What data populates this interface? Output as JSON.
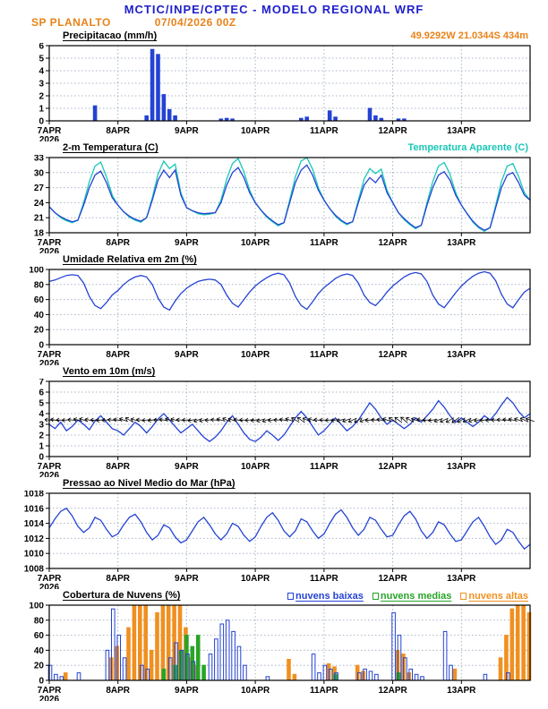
{
  "header": {
    "line1": "MCTIC/INPE/CPTEC - MODELO REGIONAL WRF",
    "station": "SP PLANALTO",
    "run_datetime": "07/04/2026 00Z"
  },
  "colors": {
    "header_blue": "#2020cc",
    "orange": "#e8821a",
    "line_blue": "#2443d4",
    "cyan": "#18c8b8",
    "green": "#28a428",
    "cloud_orange": "#f09020",
    "grid": "#a8b4c8"
  },
  "chart_data": {
    "type": "line",
    "subtype": "meteogram-multipanel",
    "x_axis": {
      "day_labels": [
        "7APR",
        "8APR",
        "9APR",
        "10APR",
        "11APR",
        "12APR",
        "13APR"
      ],
      "year": "2026",
      "hours": 168,
      "step": 2
    },
    "panels": [
      {
        "title": "Precipitacao (mm/h)",
        "right_label": "49.9292W 21.0344S 434m",
        "right_label_color": "#e8821a",
        "ylim": [
          0,
          6
        ],
        "yticks": [
          0,
          1,
          2,
          3,
          4,
          5,
          6
        ],
        "series": [
          {
            "type": "bar-sparse",
            "data": "precip",
            "color": "#2443d4",
            "fill": "solid",
            "dx": 0
          }
        ]
      },
      {
        "title": "2-m Temperatura (C)",
        "right_label": "Temperatura Aparente (C)",
        "right_label_color": "#18c8b8",
        "ylim": [
          18,
          33
        ],
        "yticks": [
          18,
          21,
          24,
          27,
          30,
          33
        ],
        "series": [
          {
            "type": "line",
            "data": "apparent_temp",
            "color": "#18c8b8"
          },
          {
            "type": "line",
            "data": "temp",
            "color": "#2443d4"
          }
        ]
      },
      {
        "title": "Umidade Relativa em 2m (%)",
        "ylim": [
          0,
          100
        ],
        "yticks": [
          0,
          20,
          40,
          60,
          80,
          100
        ],
        "series": [
          {
            "type": "line",
            "data": "rh",
            "color": "#2443d4"
          }
        ]
      },
      {
        "title": "Vento em 10m (m/s)",
        "ylim": [
          0,
          7
        ],
        "yticks": [
          0,
          1,
          2,
          3,
          4,
          5,
          6,
          7
        ],
        "series": [
          {
            "type": "line",
            "data": "wind_speed",
            "color": "#2443d4"
          },
          {
            "type": "barbs",
            "data": "wind_dir",
            "y": 3.4,
            "color": "#000000"
          }
        ]
      },
      {
        "title": "Pressao ao Nivel Medio do Mar (hPa)",
        "ylim": [
          1008,
          1018
        ],
        "yticks": [
          1008,
          1010,
          1012,
          1014,
          1016,
          1018
        ],
        "series": [
          {
            "type": "line",
            "data": "pressure",
            "color": "#2443d4"
          }
        ]
      },
      {
        "title": "Cobertura de Nuvens (%)",
        "ylim": [
          0,
          100
        ],
        "yticks": [
          0,
          20,
          40,
          60,
          80,
          100
        ],
        "legend": [
          {
            "label": "nuvens baixas",
            "color": "#2443d4"
          },
          {
            "label": "nuvens medias",
            "color": "#28a428"
          },
          {
            "label": "nuvens altas",
            "color": "#f09020"
          }
        ],
        "series": [
          {
            "type": "bar-sparse",
            "data": "clouds_high",
            "color": "#f09020",
            "fill": "solid",
            "dx": -1
          },
          {
            "type": "bar-sparse",
            "data": "clouds_mid",
            "color": "#28a428",
            "fill": "solid",
            "dx": 0
          },
          {
            "type": "bar-sparse",
            "data": "clouds_low",
            "color": "#2443d4",
            "fill": "none",
            "dx": 1
          }
        ]
      }
    ],
    "series": {
      "temp": [
        23.2,
        22.0,
        21.2,
        20.6,
        20.2,
        20.5,
        23.5,
        27.0,
        29.5,
        30.3,
        28.0,
        25.0,
        23.5,
        22.2,
        21.3,
        20.7,
        20.3,
        21.0,
        24.5,
        28.5,
        30.5,
        29.0,
        30.5,
        25.5,
        23.0,
        22.4,
        22.0,
        21.8,
        21.9,
        22.0,
        24.0,
        27.5,
        30.0,
        31.0,
        29.0,
        26.0,
        24.0,
        22.5,
        21.3,
        20.4,
        19.6,
        20.0,
        24.0,
        28.0,
        30.5,
        31.5,
        29.5,
        26.5,
        24.5,
        22.8,
        21.5,
        20.5,
        19.8,
        20.2,
        24.0,
        27.5,
        29.0,
        28.0,
        29.5,
        26.0,
        24.0,
        22.0,
        20.8,
        19.8,
        19.0,
        19.5,
        23.5,
        27.0,
        29.5,
        30.2,
        28.5,
        25.5,
        23.5,
        21.8,
        20.3,
        19.2,
        18.5,
        19.0,
        23.0,
        27.0,
        29.5,
        30.0,
        28.0,
        25.5,
        24.5
      ],
      "apparent_temp": [
        23.2,
        22.0,
        21.0,
        20.4,
        20.0,
        20.5,
        24.0,
        28.2,
        31.3,
        32.1,
        29.2,
        25.5,
        23.5,
        22.2,
        21.1,
        20.5,
        20.1,
        21.0,
        25.0,
        29.7,
        32.3,
        30.8,
        31.7,
        26.0,
        23.0,
        22.4,
        21.8,
        21.6,
        21.7,
        22.0,
        24.5,
        28.7,
        31.8,
        32.8,
        30.2,
        26.5,
        24.0,
        22.5,
        21.1,
        20.2,
        19.4,
        20.0,
        24.5,
        29.2,
        32.3,
        33.0,
        30.7,
        27.0,
        24.5,
        22.8,
        21.3,
        20.3,
        19.6,
        20.2,
        24.5,
        28.7,
        30.8,
        29.8,
        30.7,
        26.5,
        24.0,
        22.0,
        20.6,
        19.6,
        18.8,
        19.5,
        24.0,
        28.2,
        31.3,
        32.0,
        29.7,
        26.0,
        23.5,
        21.8,
        20.1,
        19.0,
        18.3,
        19.0,
        23.5,
        28.2,
        31.3,
        31.8,
        29.2,
        26.0,
        24.5
      ],
      "rh": [
        84,
        86,
        89,
        92,
        93,
        92,
        82,
        64,
        52,
        48,
        56,
        66,
        72,
        80,
        86,
        90,
        92,
        90,
        80,
        62,
        50,
        46,
        58,
        68,
        75,
        80,
        84,
        86,
        87,
        86,
        80,
        66,
        55,
        50,
        60,
        70,
        78,
        84,
        89,
        93,
        95,
        93,
        82,
        64,
        52,
        47,
        57,
        68,
        76,
        82,
        88,
        92,
        94,
        92,
        82,
        66,
        56,
        52,
        60,
        70,
        78,
        84,
        90,
        94,
        96,
        94,
        84,
        66,
        54,
        49,
        59,
        69,
        78,
        85,
        91,
        95,
        97,
        95,
        85,
        67,
        54,
        49,
        60,
        70,
        75
      ],
      "wind_speed": [
        3.0,
        2.6,
        3.2,
        2.4,
        2.8,
        3.4,
        3.0,
        2.5,
        3.3,
        3.8,
        3.2,
        2.6,
        2.4,
        2.0,
        2.6,
        3.2,
        2.8,
        2.2,
        2.8,
        3.5,
        4.0,
        3.4,
        2.8,
        2.2,
        2.6,
        3.0,
        2.4,
        1.8,
        1.4,
        1.8,
        2.4,
        3.2,
        3.8,
        3.0,
        2.2,
        1.6,
        1.4,
        1.8,
        2.4,
        2.0,
        1.5,
        2.0,
        2.8,
        3.6,
        4.2,
        3.6,
        2.8,
        2.0,
        2.4,
        3.0,
        3.6,
        3.0,
        2.4,
        2.8,
        3.4,
        4.2,
        5.0,
        4.4,
        3.6,
        3.0,
        3.4,
        3.0,
        2.6,
        3.0,
        3.6,
        3.2,
        3.8,
        4.4,
        5.2,
        4.6,
        3.8,
        3.2,
        3.6,
        3.2,
        2.8,
        3.2,
        3.8,
        3.4,
        4.0,
        4.8,
        5.5,
        5.0,
        4.2,
        3.6,
        4.0
      ],
      "wind_dir": [
        185,
        190,
        180,
        175,
        185,
        195,
        200,
        190,
        180,
        170,
        175,
        185,
        190,
        200,
        210,
        195,
        185,
        175,
        170,
        180,
        190,
        200,
        195,
        185,
        180,
        170,
        160,
        165,
        175,
        185,
        195,
        205,
        200,
        190,
        180,
        175,
        170,
        165,
        160,
        170,
        180,
        190,
        200,
        210,
        215,
        205,
        195,
        185,
        180,
        175,
        170,
        165,
        160,
        155,
        150,
        160,
        170,
        180,
        190,
        200,
        210,
        215,
        220,
        210,
        200,
        190,
        180,
        170,
        160,
        155,
        150,
        145,
        150,
        155,
        160,
        165,
        170,
        175,
        180,
        185,
        190,
        195,
        200,
        205,
        200
      ],
      "pressure": [
        1013.4,
        1014.6,
        1015.6,
        1016.0,
        1015.0,
        1013.6,
        1012.8,
        1013.4,
        1014.8,
        1014.4,
        1013.2,
        1012.2,
        1012.6,
        1013.8,
        1014.8,
        1015.2,
        1014.2,
        1012.8,
        1011.8,
        1012.4,
        1013.8,
        1013.4,
        1012.2,
        1011.4,
        1011.8,
        1013.0,
        1014.2,
        1014.8,
        1013.8,
        1012.6,
        1011.8,
        1012.6,
        1014.0,
        1013.6,
        1012.4,
        1011.6,
        1012.2,
        1013.6,
        1014.8,
        1015.4,
        1014.4,
        1013.0,
        1012.2,
        1013.0,
        1014.6,
        1014.2,
        1013.0,
        1012.0,
        1012.6,
        1014.0,
        1015.2,
        1015.8,
        1014.8,
        1013.4,
        1012.4,
        1013.2,
        1014.8,
        1014.4,
        1013.2,
        1012.2,
        1012.4,
        1013.8,
        1015.0,
        1015.6,
        1014.6,
        1013.0,
        1012.0,
        1012.8,
        1014.2,
        1013.8,
        1012.6,
        1011.6,
        1011.8,
        1013.0,
        1014.2,
        1014.8,
        1013.6,
        1012.2,
        1011.2,
        1011.8,
        1013.2,
        1012.8,
        1011.6,
        1010.6,
        1011.2
      ],
      "precip": [
        [
          8,
          1.2
        ],
        [
          17,
          0.4
        ],
        [
          18,
          5.7
        ],
        [
          19,
          5.3
        ],
        [
          20,
          2.1
        ],
        [
          21,
          0.9
        ],
        [
          22,
          0.4
        ],
        [
          30,
          0.15
        ],
        [
          31,
          0.2
        ],
        [
          32,
          0.15
        ],
        [
          44,
          0.2
        ],
        [
          45,
          0.3
        ],
        [
          49,
          0.8
        ],
        [
          50,
          0.3
        ],
        [
          56,
          1.0
        ],
        [
          57,
          0.4
        ],
        [
          58,
          0.2
        ],
        [
          61,
          0.15
        ],
        [
          62,
          0.15
        ]
      ],
      "clouds_low": [
        [
          0,
          20
        ],
        [
          1,
          8
        ],
        [
          2,
          5
        ],
        [
          5,
          10
        ],
        [
          10,
          40
        ],
        [
          11,
          95
        ],
        [
          12,
          60
        ],
        [
          13,
          30
        ],
        [
          16,
          20
        ],
        [
          17,
          15
        ],
        [
          21,
          30
        ],
        [
          22,
          50
        ],
        [
          23,
          40
        ],
        [
          24,
          35
        ],
        [
          25,
          25
        ],
        [
          28,
          35
        ],
        [
          29,
          55
        ],
        [
          30,
          75
        ],
        [
          31,
          80
        ],
        [
          32,
          65
        ],
        [
          33,
          45
        ],
        [
          34,
          20
        ],
        [
          38,
          5
        ],
        [
          46,
          35
        ],
        [
          47,
          10
        ],
        [
          48,
          20
        ],
        [
          49,
          15
        ],
        [
          50,
          10
        ],
        [
          54,
          10
        ],
        [
          55,
          15
        ],
        [
          56,
          12
        ],
        [
          57,
          8
        ],
        [
          60,
          90
        ],
        [
          61,
          60
        ],
        [
          62,
          30
        ],
        [
          63,
          15
        ],
        [
          64,
          8
        ],
        [
          65,
          5
        ],
        [
          69,
          65
        ],
        [
          70,
          20
        ],
        [
          76,
          8
        ],
        [
          80,
          10
        ]
      ],
      "clouds_mid": [
        [
          20,
          15
        ],
        [
          22,
          20
        ],
        [
          23,
          40
        ],
        [
          24,
          60
        ],
        [
          25,
          45
        ],
        [
          26,
          60
        ],
        [
          27,
          20
        ],
        [
          50,
          8
        ],
        [
          61,
          10
        ]
      ],
      "clouds_high": [
        [
          3,
          10
        ],
        [
          11,
          30
        ],
        [
          12,
          45
        ],
        [
          14,
          70
        ],
        [
          15,
          100
        ],
        [
          16,
          100
        ],
        [
          17,
          100
        ],
        [
          18,
          40
        ],
        [
          19,
          90
        ],
        [
          20,
          100
        ],
        [
          21,
          100
        ],
        [
          22,
          100
        ],
        [
          23,
          100
        ],
        [
          24,
          70
        ],
        [
          25,
          30
        ],
        [
          26,
          20
        ],
        [
          42,
          28
        ],
        [
          43,
          8
        ],
        [
          49,
          22
        ],
        [
          50,
          18
        ],
        [
          54,
          20
        ],
        [
          55,
          12
        ],
        [
          61,
          40
        ],
        [
          62,
          35
        ],
        [
          63,
          10
        ],
        [
          71,
          15
        ],
        [
          79,
          30
        ],
        [
          80,
          60
        ],
        [
          81,
          95
        ],
        [
          82,
          100
        ],
        [
          83,
          100
        ],
        [
          84,
          90
        ]
      ]
    }
  }
}
